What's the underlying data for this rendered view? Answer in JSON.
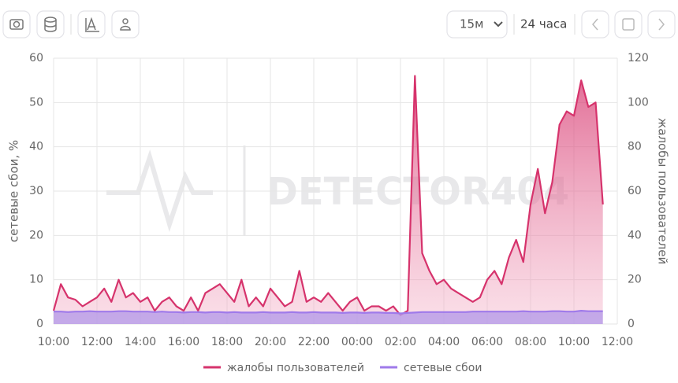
{
  "toolbar": {
    "interval": "15м",
    "range": "24 часа"
  },
  "watermark": "DETECTOR404",
  "chart_data": {
    "type": "line",
    "y_label": "сетевые сбои, %",
    "y2_label": "жалобы пользователей",
    "categories": [
      "10:00",
      null,
      null,
      null,
      null,
      null,
      "12:00",
      null,
      null,
      null,
      null,
      null,
      "14:00",
      null,
      null,
      null,
      null,
      null,
      "16:00",
      null,
      null,
      null,
      null,
      null,
      "18:00",
      null,
      null,
      null,
      null,
      null,
      "20:00",
      null,
      null,
      null,
      null,
      null,
      "22:00",
      null,
      null,
      null,
      null,
      null,
      "00:00",
      null,
      null,
      null,
      null,
      null,
      "02:00",
      null,
      null,
      null,
      null,
      null,
      "04:00",
      null,
      null,
      null,
      null,
      null,
      "06:00",
      null,
      null,
      null,
      null,
      null,
      "08:00",
      null,
      null,
      null,
      null,
      null,
      "10:00",
      null,
      null,
      null,
      null,
      null,
      "12:00"
    ],
    "series": [
      {
        "name": "жалобы пользователей",
        "color": "#d6336c",
        "axis": "y2",
        "values": [
          6,
          18,
          12,
          11,
          8,
          10,
          12,
          16,
          10,
          20,
          12,
          14,
          10,
          12,
          6,
          10,
          12,
          8,
          6,
          12,
          6,
          14,
          16,
          18,
          14,
          10,
          20,
          8,
          12,
          8,
          16,
          12,
          8,
          10,
          24,
          10,
          12,
          10,
          14,
          10,
          6,
          10,
          12,
          6,
          8,
          8,
          6,
          8,
          4,
          6,
          112,
          32,
          24,
          18,
          20,
          16,
          14,
          12,
          10,
          12,
          20,
          24,
          18,
          30,
          38,
          28,
          54,
          70,
          50,
          64,
          90,
          96,
          94,
          110,
          98,
          100,
          54,
          null,
          null
        ]
      },
      {
        "name": "сетевые сбои",
        "color": "#9f7aea",
        "values": [
          2.8,
          2.8,
          2.7,
          2.8,
          2.8,
          2.9,
          2.8,
          2.8,
          2.8,
          2.9,
          2.9,
          2.8,
          2.8,
          2.8,
          2.7,
          2.8,
          2.7,
          2.7,
          2.6,
          2.7,
          2.7,
          2.6,
          2.7,
          2.7,
          2.6,
          2.7,
          2.6,
          2.6,
          2.6,
          2.7,
          2.6,
          2.6,
          2.6,
          2.7,
          2.6,
          2.6,
          2.7,
          2.6,
          2.6,
          2.6,
          2.5,
          2.6,
          2.6,
          2.5,
          2.6,
          2.6,
          2.5,
          2.5,
          2.4,
          2.5,
          2.6,
          2.7,
          2.7,
          2.7,
          2.7,
          2.7,
          2.7,
          2.7,
          2.8,
          2.8,
          2.8,
          2.8,
          2.8,
          2.8,
          2.8,
          2.9,
          2.8,
          2.8,
          2.8,
          2.9,
          2.9,
          2.8,
          2.8,
          3,
          2.9,
          2.9,
          2.9,
          null,
          null
        ]
      }
    ],
    "ylim": [
      0,
      60
    ],
    "yticks": [
      0,
      10,
      20,
      30,
      40,
      50,
      60
    ],
    "y2lim": [
      0,
      120
    ],
    "y2ticks": [
      0,
      20,
      40,
      60,
      80,
      100,
      120
    ],
    "grid": true
  }
}
